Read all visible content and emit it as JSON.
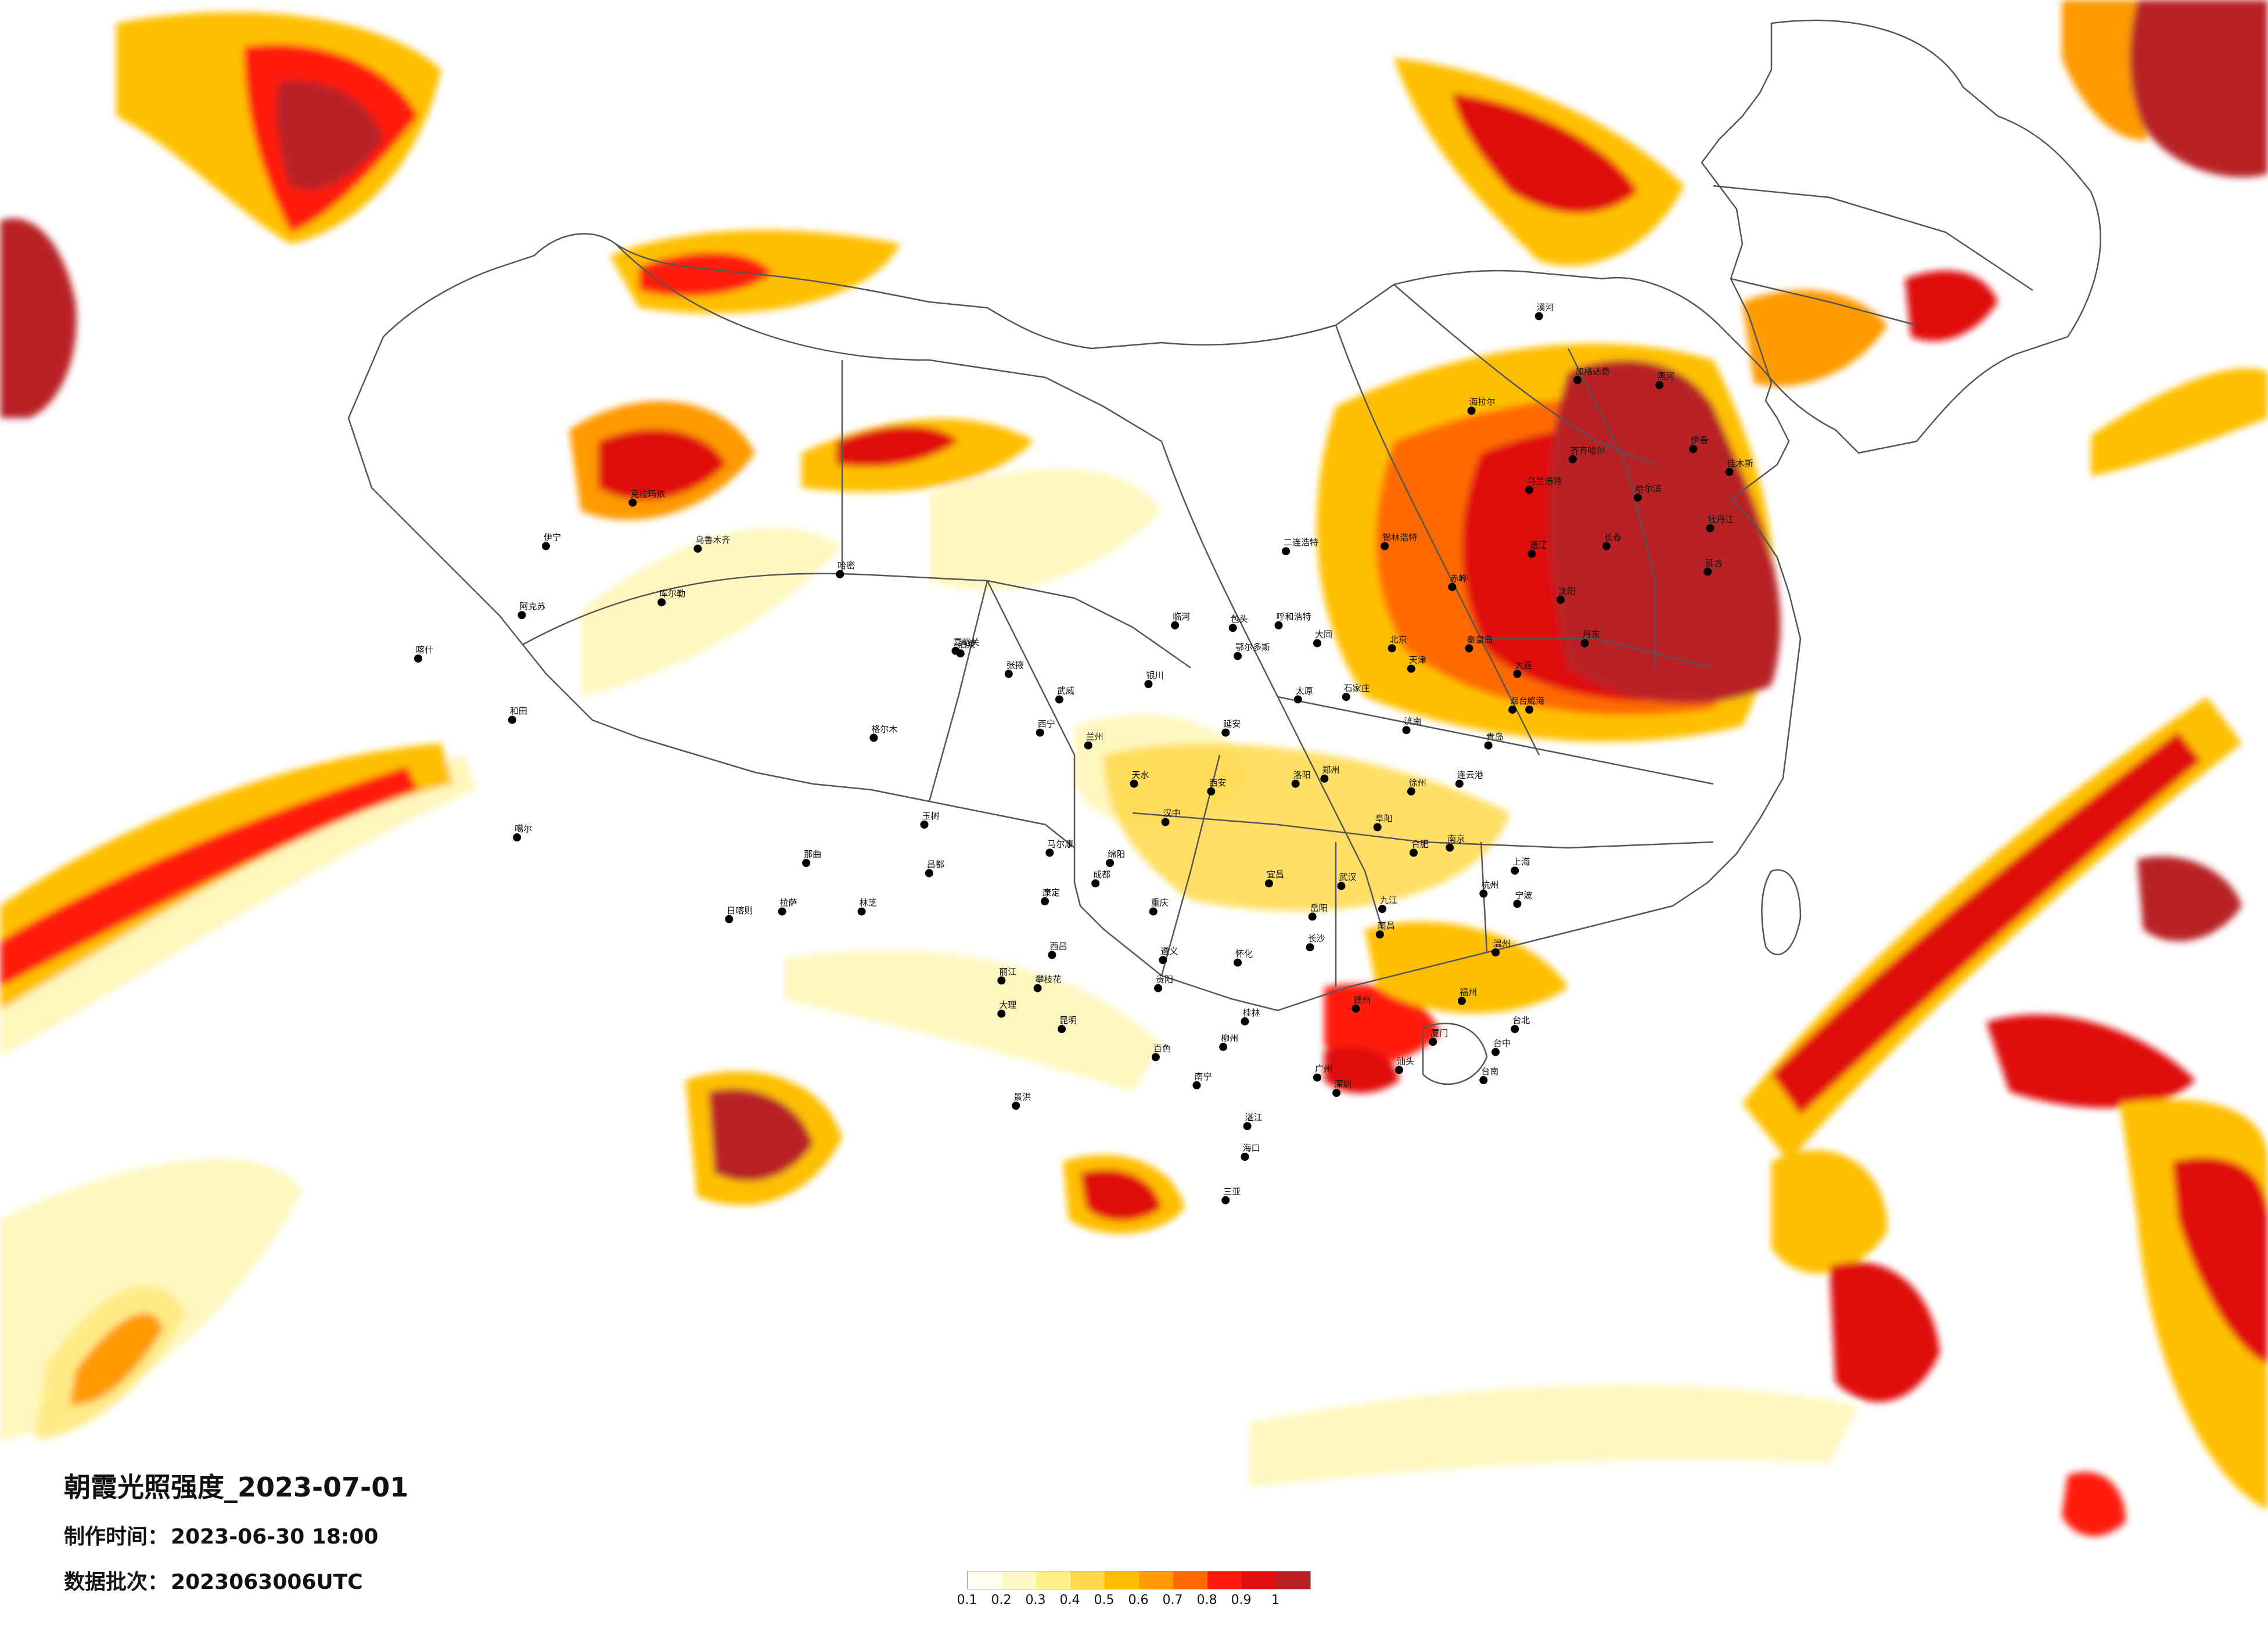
{
  "title": "朝霞光照强度_2023-07-01",
  "made_label": "制作时间：",
  "made_value": "2023-06-30 18:00",
  "batch_label": "数据批次：",
  "batch_value": "2023063006UTC",
  "legend": {
    "ticks": [
      "0.1",
      "0.2",
      "0.3",
      "0.4",
      "0.5",
      "0.6",
      "0.7",
      "0.8",
      "0.9",
      "1"
    ],
    "colors": [
      "#fffef0",
      "#fff8c8",
      "#fff08a",
      "#ffd94a",
      "#ffbf00",
      "#ff9a00",
      "#ff6a00",
      "#ff1a10",
      "#e01010",
      "#b82025"
    ]
  },
  "cities": [
    {
      "name": "阿克苏",
      "lon": 80.3,
      "lat": 41.2
    },
    {
      "name": "喀什",
      "lon": 76.0,
      "lat": 39.5
    },
    {
      "name": "和田",
      "lon": 79.9,
      "lat": 37.1
    },
    {
      "name": "库尔勒",
      "lon": 86.1,
      "lat": 41.7
    },
    {
      "name": "乌鲁木齐",
      "lon": 87.6,
      "lat": 43.8
    },
    {
      "name": "克拉玛依",
      "lon": 84.9,
      "lat": 45.6
    },
    {
      "name": "伊宁",
      "lon": 81.3,
      "lat": 43.9
    },
    {
      "name": "哈密",
      "lon": 93.5,
      "lat": 42.8
    },
    {
      "name": "噶尔",
      "lon": 80.1,
      "lat": 32.5
    },
    {
      "name": "那曲",
      "lon": 92.1,
      "lat": 31.5
    },
    {
      "name": "拉萨",
      "lon": 91.1,
      "lat": 29.6
    },
    {
      "name": "日喀则",
      "lon": 88.9,
      "lat": 29.3
    },
    {
      "name": "林芝",
      "lon": 94.4,
      "lat": 29.6
    },
    {
      "name": "昌都",
      "lon": 97.2,
      "lat": 31.1
    },
    {
      "name": "格尔木",
      "lon": 94.9,
      "lat": 36.4
    },
    {
      "name": "西宁",
      "lon": 101.8,
      "lat": 36.6
    },
    {
      "name": "玉树",
      "lon": 97.0,
      "lat": 33.0
    },
    {
      "name": "嘉峪关",
      "lon": 98.3,
      "lat": 39.8
    },
    {
      "name": "酒泉",
      "lon": 98.5,
      "lat": 39.7
    },
    {
      "name": "兰州",
      "lon": 103.8,
      "lat": 36.1
    },
    {
      "name": "银川",
      "lon": 106.3,
      "lat": 38.5
    },
    {
      "name": "呼和浩特",
      "lon": 111.7,
      "lat": 40.8
    },
    {
      "name": "包头",
      "lon": 109.8,
      "lat": 40.7
    },
    {
      "name": "西安",
      "lon": 108.9,
      "lat": 34.3
    },
    {
      "name": "成都",
      "lon": 104.1,
      "lat": 30.7
    },
    {
      "name": "重庆",
      "lon": 106.5,
      "lat": 29.6
    },
    {
      "name": "贵阳",
      "lon": 106.7,
      "lat": 26.6
    },
    {
      "name": "昆明",
      "lon": 102.7,
      "lat": 25.0
    },
    {
      "name": "大理",
      "lon": 100.2,
      "lat": 25.6
    },
    {
      "name": "南宁",
      "lon": 108.3,
      "lat": 22.8
    },
    {
      "name": "海口",
      "lon": 110.3,
      "lat": 20.0
    },
    {
      "name": "广州",
      "lon": 113.3,
      "lat": 23.1
    },
    {
      "name": "深圳",
      "lon": 114.1,
      "lat": 22.5
    },
    {
      "name": "福州",
      "lon": 119.3,
      "lat": 26.1
    },
    {
      "name": "台北",
      "lon": 121.5,
      "lat": 25.0
    },
    {
      "name": "台中",
      "lon": 120.7,
      "lat": 24.1
    },
    {
      "name": "台南",
      "lon": 120.2,
      "lat": 23.0
    },
    {
      "name": "杭州",
      "lon": 120.2,
      "lat": 30.3
    },
    {
      "name": "上海",
      "lon": 121.5,
      "lat": 31.2
    },
    {
      "name": "南京",
      "lon": 118.8,
      "lat": 32.1
    },
    {
      "name": "合肥",
      "lon": 117.3,
      "lat": 31.9
    },
    {
      "name": "武汉",
      "lon": 114.3,
      "lat": 30.6
    },
    {
      "name": "长沙",
      "lon": 113.0,
      "lat": 28.2
    },
    {
      "name": "南昌",
      "lon": 115.9,
      "lat": 28.7
    },
    {
      "name": "郑州",
      "lon": 113.6,
      "lat": 34.8
    },
    {
      "name": "济南",
      "lon": 117.0,
      "lat": 36.7
    },
    {
      "name": "青岛",
      "lon": 120.4,
      "lat": 36.1
    },
    {
      "name": "石家庄",
      "lon": 114.5,
      "lat": 38.0
    },
    {
      "name": "太原",
      "lon": 112.5,
      "lat": 37.9
    },
    {
      "name": "北京",
      "lon": 116.4,
      "lat": 39.9
    },
    {
      "name": "天津",
      "lon": 117.2,
      "lat": 39.1
    },
    {
      "name": "沈阳",
      "lon": 123.4,
      "lat": 41.8
    },
    {
      "name": "大连",
      "lon": 121.6,
      "lat": 38.9
    },
    {
      "name": "长春",
      "lon": 125.3,
      "lat": 43.9
    },
    {
      "name": "哈尔滨",
      "lon": 126.6,
      "lat": 45.8
    },
    {
      "name": "齐齐哈尔",
      "lon": 123.9,
      "lat": 47.3
    },
    {
      "name": "佳木斯",
      "lon": 130.4,
      "lat": 46.8
    },
    {
      "name": "牡丹江",
      "lon": 129.6,
      "lat": 44.6
    },
    {
      "name": "伊春",
      "lon": 128.9,
      "lat": 47.7
    },
    {
      "name": "黑河",
      "lon": 127.5,
      "lat": 50.2
    },
    {
      "name": "漠河",
      "lon": 122.5,
      "lat": 52.9
    },
    {
      "name": "加格达奇",
      "lon": 124.1,
      "lat": 50.4
    },
    {
      "name": "海拉尔",
      "lon": 119.7,
      "lat": 49.2
    },
    {
      "name": "锡林浩特",
      "lon": 116.1,
      "lat": 43.9
    },
    {
      "name": "赤峰",
      "lon": 118.9,
      "lat": 42.3
    },
    {
      "name": "通辽",
      "lon": 122.2,
      "lat": 43.6
    },
    {
      "name": "乌兰浩特",
      "lon": 122.1,
      "lat": 46.1
    },
    {
      "name": "二连浩特",
      "lon": 112.0,
      "lat": 43.7
    },
    {
      "name": "延吉",
      "lon": 129.5,
      "lat": 42.9
    },
    {
      "name": "丹东",
      "lon": 124.4,
      "lat": 40.1
    },
    {
      "name": "烟台",
      "lon": 121.4,
      "lat": 37.5
    },
    {
      "name": "威海",
      "lon": 122.1,
      "lat": 37.5
    },
    {
      "name": "徐州",
      "lon": 117.2,
      "lat": 34.3
    },
    {
      "name": "洛阳",
      "lon": 112.4,
      "lat": 34.6
    },
    {
      "name": "宜昌",
      "lon": 111.3,
      "lat": 30.7
    },
    {
      "name": "赣州",
      "lon": 114.9,
      "lat": 25.8
    },
    {
      "name": "厦门",
      "lon": 118.1,
      "lat": 24.5
    },
    {
      "name": "汕头",
      "lon": 116.7,
      "lat": 23.4
    },
    {
      "name": "湛江",
      "lon": 110.4,
      "lat": 21.2
    },
    {
      "name": "桂林",
      "lon": 110.3,
      "lat": 25.3
    },
    {
      "name": "柳州",
      "lon": 109.4,
      "lat": 24.3
    },
    {
      "name": "遵义",
      "lon": 106.9,
      "lat": 27.7
    },
    {
      "name": "绵阳",
      "lon": 104.7,
      "lat": 31.5
    },
    {
      "name": "宁波",
      "lon": 121.6,
      "lat": 29.9
    },
    {
      "name": "温州",
      "lon": 120.7,
      "lat": 28.0
    },
    {
      "name": "三亚",
      "lon": 109.5,
      "lat": 18.3
    },
    {
      "name": "延安",
      "lon": 109.5,
      "lat": 36.6
    },
    {
      "name": "大同",
      "lon": 113.3,
      "lat": 40.1
    },
    {
      "name": "秦皇岛",
      "lon": 119.6,
      "lat": 39.9
    },
    {
      "name": "连云港",
      "lon": 119.2,
      "lat": 34.6
    },
    {
      "name": "阜阳",
      "lon": 115.8,
      "lat": 32.9
    },
    {
      "name": "九江",
      "lon": 116.0,
      "lat": 29.7
    },
    {
      "name": "岳阳",
      "lon": 113.1,
      "lat": 29.4
    },
    {
      "name": "怀化",
      "lon": 110.0,
      "lat": 27.6
    },
    {
      "name": "百色",
      "lon": 106.6,
      "lat": 23.9
    },
    {
      "name": "景洪",
      "lon": 100.8,
      "lat": 22.0
    },
    {
      "name": "丽江",
      "lon": 100.2,
      "lat": 26.9
    },
    {
      "name": "攀枝花",
      "lon": 101.7,
      "lat": 26.6
    },
    {
      "name": "西昌",
      "lon": 102.3,
      "lat": 27.9
    },
    {
      "name": "康定",
      "lon": 102.0,
      "lat": 30.0
    },
    {
      "name": "马尔康",
      "lon": 102.2,
      "lat": 31.9
    },
    {
      "name": "汉中",
      "lon": 107.0,
      "lat": 33.1
    },
    {
      "name": "天水",
      "lon": 105.7,
      "lat": 34.6
    },
    {
      "name": "张掖",
      "lon": 100.5,
      "lat": 38.9
    },
    {
      "name": "武威",
      "lon": 102.6,
      "lat": 37.9
    },
    {
      "name": "鄂尔多斯",
      "lon": 110.0,
      "lat": 39.6
    },
    {
      "name": "临河",
      "lon": 107.4,
      "lat": 40.8
    }
  ]
}
